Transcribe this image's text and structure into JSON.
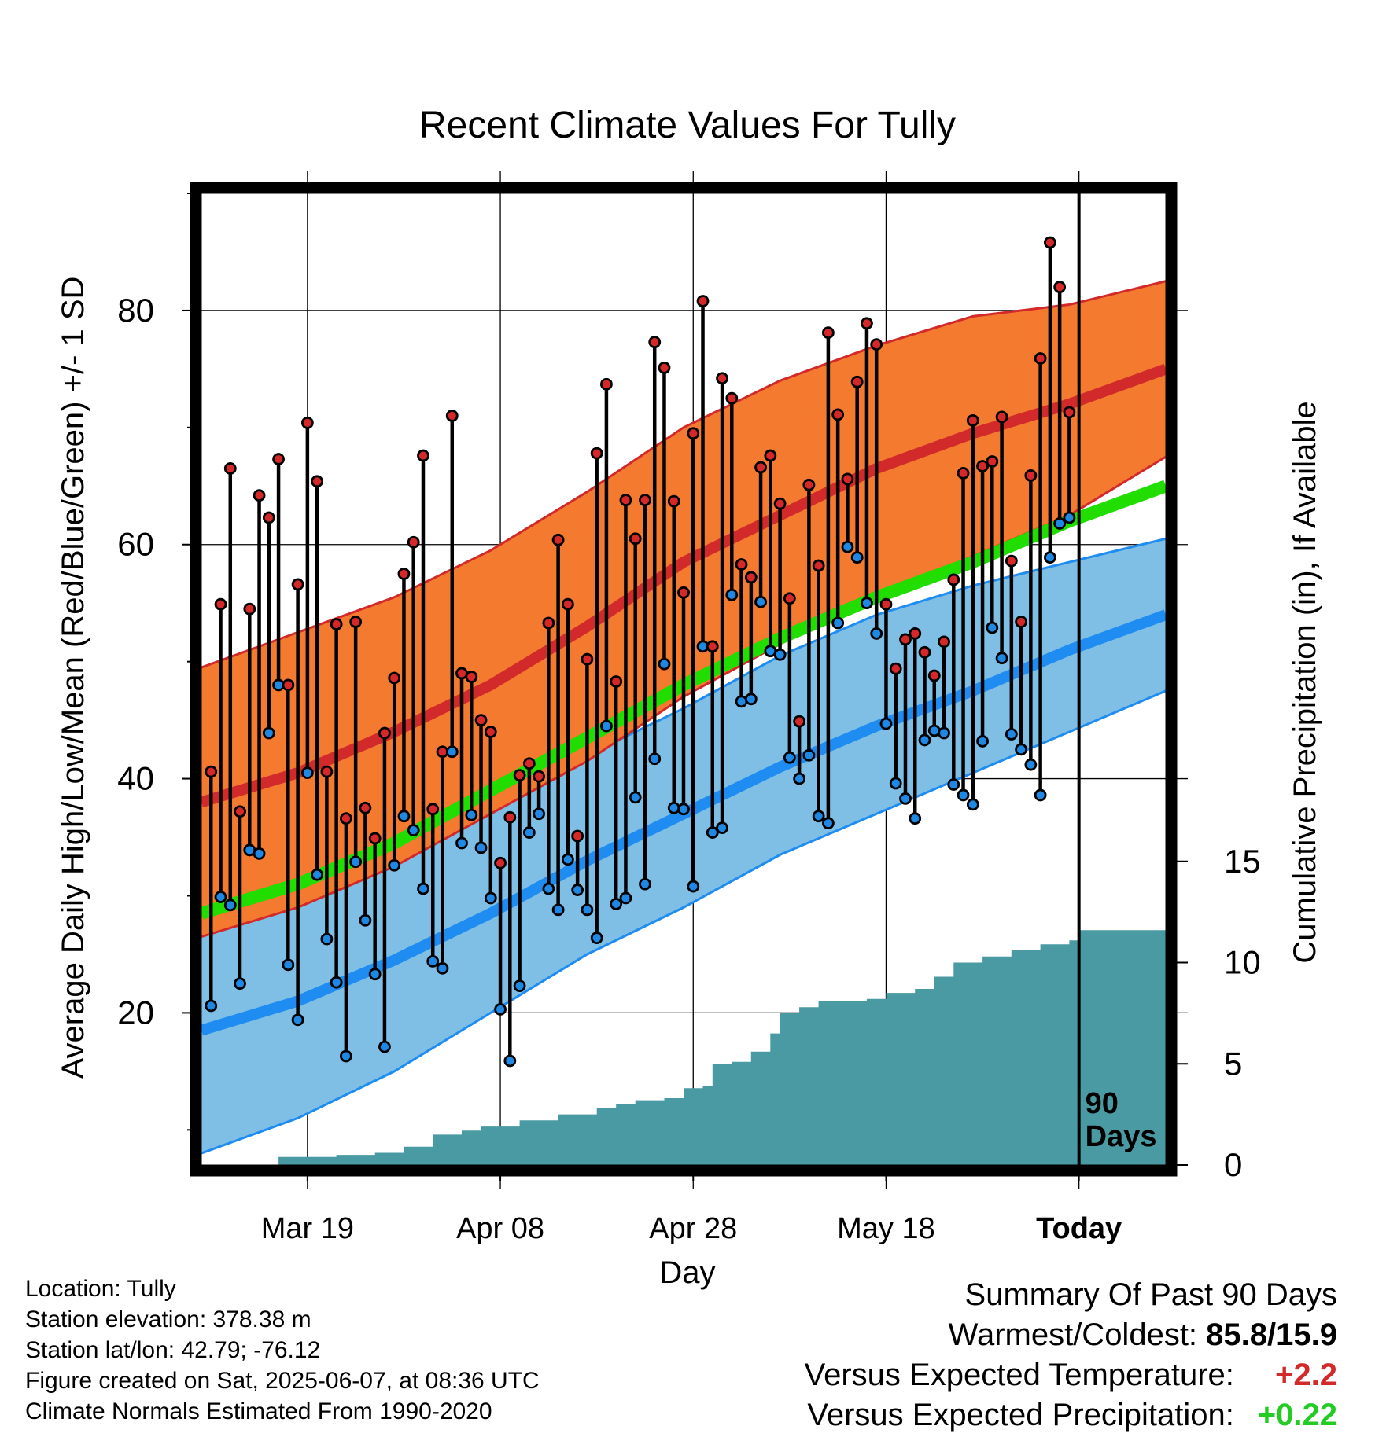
{
  "chart_data": {
    "type": "line",
    "title": "Recent Climate Values For Tully",
    "xlabel": "Day",
    "ylabel_left": "Average Daily High/Low/Mean (Red/Blue/Green) +/- 1 SD",
    "ylabel_right": "Cumulative Precipitation (in), If Available",
    "x_ticks": [
      {
        "label": "Mar 19",
        "date": "2025-03-19"
      },
      {
        "label": "Apr 08",
        "date": "2025-04-08"
      },
      {
        "label": "Apr 28",
        "date": "2025-04-28"
      },
      {
        "label": "May 18",
        "date": "2025-05-18"
      },
      {
        "label": "Today",
        "date": "2025-06-07"
      }
    ],
    "x_range": [
      "2025-03-08",
      "2025-06-16"
    ],
    "today_date": "2025-06-07",
    "today_label": "90 Days",
    "y_left_range": [
      7,
      90
    ],
    "y_left_ticks": [
      20,
      40,
      60,
      80
    ],
    "y_right_range": [
      0,
      48
    ],
    "y_right_ticks": [
      0,
      5,
      10,
      15
    ],
    "grid": true,
    "normal_high": [
      {
        "date": "2025-03-08",
        "mean": 38.0,
        "lower": 26.5,
        "upper": 49.5
      },
      {
        "date": "2025-03-18",
        "mean": 40.5,
        "lower": 29.0,
        "upper": 52.5
      },
      {
        "date": "2025-03-28",
        "mean": 44.0,
        "lower": 32.5,
        "upper": 55.5
      },
      {
        "date": "2025-04-07",
        "mean": 48.0,
        "lower": 37.0,
        "upper": 59.5
      },
      {
        "date": "2025-04-17",
        "mean": 53.0,
        "lower": 41.5,
        "upper": 64.5
      },
      {
        "date": "2025-04-27",
        "mean": 58.5,
        "lower": 47.0,
        "upper": 70.0
      },
      {
        "date": "2025-05-07",
        "mean": 62.5,
        "lower": 51.5,
        "upper": 74.0
      },
      {
        "date": "2025-05-17",
        "mean": 66.5,
        "lower": 55.5,
        "upper": 77.0
      },
      {
        "date": "2025-05-27",
        "mean": 69.5,
        "lower": 59.0,
        "upper": 79.5
      },
      {
        "date": "2025-06-06",
        "mean": 72.0,
        "lower": 62.5,
        "upper": 80.5
      },
      {
        "date": "2025-06-16",
        "mean": 75.0,
        "lower": 67.5,
        "upper": 82.5
      }
    ],
    "normal_low": [
      {
        "date": "2025-03-08",
        "mean": 18.5,
        "lower": 8.0,
        "upper": 27.5
      },
      {
        "date": "2025-03-18",
        "mean": 21.0,
        "lower": 11.0,
        "upper": 30.0
      },
      {
        "date": "2025-03-28",
        "mean": 24.5,
        "lower": 15.0,
        "upper": 33.5
      },
      {
        "date": "2025-04-07",
        "mean": 28.5,
        "lower": 20.0,
        "upper": 37.5
      },
      {
        "date": "2025-04-17",
        "mean": 33.0,
        "lower": 25.0,
        "upper": 42.0
      },
      {
        "date": "2025-04-27",
        "mean": 37.0,
        "lower": 29.0,
        "upper": 46.0
      },
      {
        "date": "2025-05-07",
        "mean": 41.0,
        "lower": 33.5,
        "upper": 50.5
      },
      {
        "date": "2025-05-17",
        "mean": 44.5,
        "lower": 37.0,
        "upper": 54.0
      },
      {
        "date": "2025-05-27",
        "mean": 47.5,
        "lower": 40.5,
        "upper": 56.5
      },
      {
        "date": "2025-06-06",
        "mean": 51.0,
        "lower": 44.0,
        "upper": 58.5
      },
      {
        "date": "2025-06-16",
        "mean": 54.0,
        "lower": 47.5,
        "upper": 60.5
      }
    ],
    "normal_mean": [
      {
        "date": "2025-03-08",
        "value": 28.5
      },
      {
        "date": "2025-03-18",
        "value": 31.0
      },
      {
        "date": "2025-03-28",
        "value": 34.5
      },
      {
        "date": "2025-04-07",
        "value": 39.0
      },
      {
        "date": "2025-04-17",
        "value": 43.5
      },
      {
        "date": "2025-04-27",
        "value": 48.0
      },
      {
        "date": "2025-05-07",
        "value": 52.0
      },
      {
        "date": "2025-05-17",
        "value": 55.5
      },
      {
        "date": "2025-05-27",
        "value": 58.5
      },
      {
        "date": "2025-06-06",
        "value": 62.0
      },
      {
        "date": "2025-06-16",
        "value": 65.0
      }
    ],
    "observed": [
      {
        "date": "2025-03-09",
        "high": 40.6,
        "low": 20.6
      },
      {
        "date": "2025-03-10",
        "high": 54.9,
        "low": 29.9
      },
      {
        "date": "2025-03-11",
        "high": 66.5,
        "low": 29.2
      },
      {
        "date": "2025-03-12",
        "high": 37.2,
        "low": 22.5
      },
      {
        "date": "2025-03-13",
        "high": 54.5,
        "low": 33.9
      },
      {
        "date": "2025-03-14",
        "high": 64.2,
        "low": 33.6
      },
      {
        "date": "2025-03-15",
        "high": 62.3,
        "low": 43.9
      },
      {
        "date": "2025-03-16",
        "high": 67.3,
        "low": 48.0
      },
      {
        "date": "2025-03-17",
        "high": 48.0,
        "low": 24.1
      },
      {
        "date": "2025-03-18",
        "high": 56.6,
        "low": 19.4
      },
      {
        "date": "2025-03-19",
        "high": 70.4,
        "low": 40.5
      },
      {
        "date": "2025-03-20",
        "high": 65.4,
        "low": 31.8
      },
      {
        "date": "2025-03-21",
        "high": 40.6,
        "low": 26.3
      },
      {
        "date": "2025-03-22",
        "high": 53.2,
        "low": 22.6
      },
      {
        "date": "2025-03-23",
        "high": 36.6,
        "low": 16.3
      },
      {
        "date": "2025-03-24",
        "high": 53.4,
        "low": 32.9
      },
      {
        "date": "2025-03-25",
        "high": 37.5,
        "low": 27.9
      },
      {
        "date": "2025-03-26",
        "high": 34.9,
        "low": 23.3
      },
      {
        "date": "2025-03-27",
        "high": 43.9,
        "low": 17.1
      },
      {
        "date": "2025-03-28",
        "high": 48.6,
        "low": 32.6
      },
      {
        "date": "2025-03-29",
        "high": 57.5,
        "low": 36.8
      },
      {
        "date": "2025-03-30",
        "high": 60.2,
        "low": 35.6
      },
      {
        "date": "2025-03-31",
        "high": 67.6,
        "low": 30.6
      },
      {
        "date": "2025-04-01",
        "high": 37.4,
        "low": 24.4
      },
      {
        "date": "2025-04-02",
        "high": 42.3,
        "low": 23.8
      },
      {
        "date": "2025-04-03",
        "high": 71.0,
        "low": 42.3
      },
      {
        "date": "2025-04-04",
        "high": 49.0,
        "low": 34.5
      },
      {
        "date": "2025-04-05",
        "high": 48.7,
        "low": 36.9
      },
      {
        "date": "2025-04-06",
        "high": 45.0,
        "low": 34.1
      },
      {
        "date": "2025-04-07",
        "high": 44.0,
        "low": 29.8
      },
      {
        "date": "2025-04-08",
        "high": 32.8,
        "low": 20.3
      },
      {
        "date": "2025-04-09",
        "high": 36.7,
        "low": 15.9
      },
      {
        "date": "2025-04-10",
        "high": 40.3,
        "low": 22.3
      },
      {
        "date": "2025-04-11",
        "high": 41.3,
        "low": 35.4
      },
      {
        "date": "2025-04-12",
        "high": 40.2,
        "low": 37.0
      },
      {
        "date": "2025-04-13",
        "high": 53.3,
        "low": 30.6
      },
      {
        "date": "2025-04-14",
        "high": 60.4,
        "low": 28.8
      },
      {
        "date": "2025-04-15",
        "high": 54.9,
        "low": 33.1
      },
      {
        "date": "2025-04-16",
        "high": 35.1,
        "low": 30.5
      },
      {
        "date": "2025-04-17",
        "high": 50.2,
        "low": 28.8
      },
      {
        "date": "2025-04-18",
        "high": 67.8,
        "low": 26.4
      },
      {
        "date": "2025-04-19",
        "high": 73.7,
        "low": 44.5
      },
      {
        "date": "2025-04-20",
        "high": 48.3,
        "low": 29.3
      },
      {
        "date": "2025-04-21",
        "high": 63.8,
        "low": 29.8
      },
      {
        "date": "2025-04-22",
        "high": 60.5,
        "low": 38.4
      },
      {
        "date": "2025-04-23",
        "high": 63.8,
        "low": 31.0
      },
      {
        "date": "2025-04-24",
        "high": 77.3,
        "low": 41.7
      },
      {
        "date": "2025-04-25",
        "high": 75.1,
        "low": 49.8
      },
      {
        "date": "2025-04-26",
        "high": 63.7,
        "low": 37.5
      },
      {
        "date": "2025-04-27",
        "high": 55.9,
        "low": 37.4
      },
      {
        "date": "2025-04-28",
        "high": 69.5,
        "low": 30.8
      },
      {
        "date": "2025-04-29",
        "high": 80.8,
        "low": 51.3
      },
      {
        "date": "2025-04-30",
        "high": 51.3,
        "low": 35.4
      },
      {
        "date": "2025-05-01",
        "high": 74.2,
        "low": 35.8
      },
      {
        "date": "2025-05-02",
        "high": 72.5,
        "low": 55.7
      },
      {
        "date": "2025-05-03",
        "high": 58.3,
        "low": 46.6
      },
      {
        "date": "2025-05-04",
        "high": 57.2,
        "low": 46.8
      },
      {
        "date": "2025-05-05",
        "high": 66.6,
        "low": 55.1
      },
      {
        "date": "2025-05-06",
        "high": 67.6,
        "low": 50.9
      },
      {
        "date": "2025-05-07",
        "high": 63.5,
        "low": 50.6
      },
      {
        "date": "2025-05-08",
        "high": 55.4,
        "low": 41.8
      },
      {
        "date": "2025-05-09",
        "high": 44.9,
        "low": 40.0
      },
      {
        "date": "2025-05-10",
        "high": 65.1,
        "low": 42.0
      },
      {
        "date": "2025-05-11",
        "high": 58.2,
        "low": 36.8
      },
      {
        "date": "2025-05-12",
        "high": 78.1,
        "low": 36.2
      },
      {
        "date": "2025-05-13",
        "high": 71.1,
        "low": 53.3
      },
      {
        "date": "2025-05-14",
        "high": 65.6,
        "low": 59.8
      },
      {
        "date": "2025-05-15",
        "high": 73.9,
        "low": 58.9
      },
      {
        "date": "2025-05-16",
        "high": 78.9,
        "low": 55.0
      },
      {
        "date": "2025-05-17",
        "high": 77.1,
        "low": 52.4
      },
      {
        "date": "2025-05-18",
        "high": 54.9,
        "low": 44.7
      },
      {
        "date": "2025-05-19",
        "high": 49.4,
        "low": 39.6
      },
      {
        "date": "2025-05-20",
        "high": 51.9,
        "low": 38.3
      },
      {
        "date": "2025-05-21",
        "high": 52.4,
        "low": 36.6
      },
      {
        "date": "2025-05-22",
        "high": 50.8,
        "low": 43.3
      },
      {
        "date": "2025-05-23",
        "high": 48.8,
        "low": 44.1
      },
      {
        "date": "2025-05-24",
        "high": 51.7,
        "low": 43.9
      },
      {
        "date": "2025-05-25",
        "high": 57.0,
        "low": 39.5
      },
      {
        "date": "2025-05-26",
        "high": 66.1,
        "low": 38.6
      },
      {
        "date": "2025-05-27",
        "high": 70.6,
        "low": 37.8
      },
      {
        "date": "2025-05-28",
        "high": 66.7,
        "low": 43.2
      },
      {
        "date": "2025-05-29",
        "high": 67.1,
        "low": 52.9
      },
      {
        "date": "2025-05-30",
        "high": 70.9,
        "low": 50.3
      },
      {
        "date": "2025-05-31",
        "high": 58.6,
        "low": 43.8
      },
      {
        "date": "2025-06-01",
        "high": 53.4,
        "low": 42.5
      },
      {
        "date": "2025-06-02",
        "high": 65.9,
        "low": 41.2
      },
      {
        "date": "2025-06-03",
        "high": 75.9,
        "low": 38.6
      },
      {
        "date": "2025-06-04",
        "high": 85.8,
        "low": 58.9
      },
      {
        "date": "2025-06-05",
        "high": 82.0,
        "low": 61.8
      },
      {
        "date": "2025-06-06",
        "high": 71.3,
        "low": 62.3
      }
    ],
    "precip_cumulative": [
      {
        "date": "2025-03-16",
        "value": 0.4
      },
      {
        "date": "2025-03-22",
        "value": 0.5
      },
      {
        "date": "2025-03-26",
        "value": 0.6
      },
      {
        "date": "2025-03-29",
        "value": 0.9
      },
      {
        "date": "2025-04-01",
        "value": 1.5
      },
      {
        "date": "2025-04-04",
        "value": 1.7
      },
      {
        "date": "2025-04-06",
        "value": 1.9
      },
      {
        "date": "2025-04-10",
        "value": 2.2
      },
      {
        "date": "2025-04-14",
        "value": 2.5
      },
      {
        "date": "2025-04-18",
        "value": 2.8
      },
      {
        "date": "2025-04-20",
        "value": 3.0
      },
      {
        "date": "2025-04-22",
        "value": 3.2
      },
      {
        "date": "2025-04-25",
        "value": 3.3
      },
      {
        "date": "2025-04-27",
        "value": 3.8
      },
      {
        "date": "2025-04-29",
        "value": 3.9
      },
      {
        "date": "2025-04-30",
        "value": 5.0
      },
      {
        "date": "2025-05-02",
        "value": 5.1
      },
      {
        "date": "2025-05-04",
        "value": 5.6
      },
      {
        "date": "2025-05-06",
        "value": 6.5
      },
      {
        "date": "2025-05-07",
        "value": 7.5
      },
      {
        "date": "2025-05-09",
        "value": 7.8
      },
      {
        "date": "2025-05-11",
        "value": 8.1
      },
      {
        "date": "2025-05-16",
        "value": 8.2
      },
      {
        "date": "2025-05-18",
        "value": 8.5
      },
      {
        "date": "2025-05-21",
        "value": 8.7
      },
      {
        "date": "2025-05-23",
        "value": 9.3
      },
      {
        "date": "2025-05-25",
        "value": 10.0
      },
      {
        "date": "2025-05-28",
        "value": 10.3
      },
      {
        "date": "2025-05-31",
        "value": 10.6
      },
      {
        "date": "2025-06-03",
        "value": 10.9
      },
      {
        "date": "2025-06-06",
        "value": 11.1
      },
      {
        "date": "2025-06-07",
        "value": 11.6
      },
      {
        "date": "2025-06-16",
        "value": 11.6
      }
    ],
    "colors": {
      "high_band": "#f47a30",
      "high_line": "#d22a2a",
      "low_band": "#7fbfe6",
      "low_line": "#1e8cf0",
      "mean_line": "#22dd00",
      "precip": "#4a9aa4",
      "high_marker": "#d62828",
      "low_marker": "#1e88e5"
    }
  },
  "info": {
    "location": "Location: Tully",
    "elevation": "Station elevation: 378.38 m",
    "latlon": "Station lat/lon: 42.79; -76.12",
    "created": "Figure created on Sat, 2025-06-07, at 08:36 UTC",
    "normals": "Climate Normals Estimated From 1990-2020"
  },
  "summary": {
    "title": "Summary Of Past 90 Days",
    "warmest_label": "Warmest/Coldest:",
    "warmest_value": "85.8/15.9",
    "temp_label": "Versus Expected Temperature:",
    "temp_value": "+2.2",
    "precip_label": "Versus Expected Precipitation:",
    "precip_value": "+0.22"
  }
}
